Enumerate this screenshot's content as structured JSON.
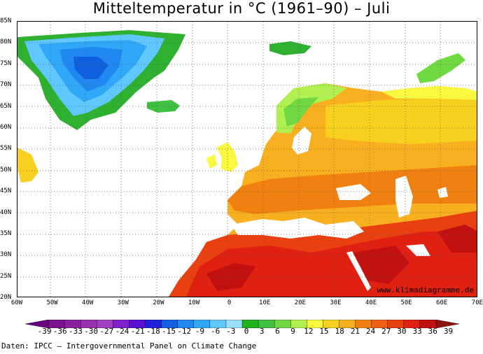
{
  "title": "Mitteltemperatur in °C (1961–90) – Juli",
  "map": {
    "lat_labels": [
      "85N",
      "80N",
      "75N",
      "70N",
      "65N",
      "60N",
      "55N",
      "50N",
      "45N",
      "40N",
      "35N",
      "30N",
      "25N",
      "20N"
    ],
    "lon_labels": [
      "60W",
      "50W",
      "40W",
      "30W",
      "20W",
      "10W",
      "0",
      "10E",
      "20E",
      "30E",
      "40E",
      "50E",
      "60E",
      "70E"
    ],
    "credit": "www.klimadiagramme.de"
  },
  "legend": {
    "ticks": [
      "-39",
      "-36",
      "-33",
      "-30",
      "-27",
      "-24",
      "-21",
      "-18",
      "-15",
      "-12",
      "-9",
      "-6",
      "-3",
      "0",
      "3",
      "6",
      "9",
      "12",
      "15",
      "18",
      "21",
      "24",
      "27",
      "30",
      "33",
      "36",
      "39"
    ],
    "colors": [
      "#6a0080",
      "#7a108f",
      "#8a20a0",
      "#9a30b0",
      "#a040c0",
      "#8020c8",
      "#5a10d0",
      "#2020d8",
      "#1060e0",
      "#2088f0",
      "#30a8f8",
      "#60c8ff",
      "#98e0ff",
      "#20b020",
      "#40c040",
      "#70d840",
      "#b0f050",
      "#f8f840",
      "#f8d020",
      "#f8b020",
      "#f08010",
      "#f06010",
      "#e84010",
      "#e02010",
      "#c01010",
      "#901010"
    ],
    "source": "Daten: IPCC – Intergovernmental Panel on Climate Change"
  }
}
